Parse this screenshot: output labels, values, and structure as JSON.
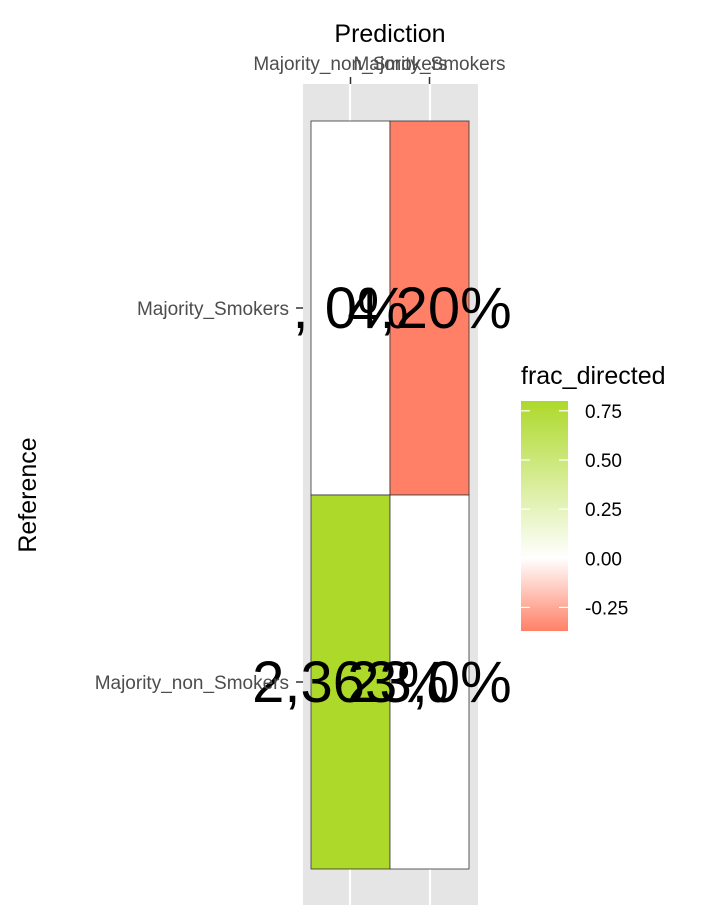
{
  "chart_data": {
    "type": "heatmap",
    "title": "",
    "xlabel": "Prediction",
    "ylabel": "Reference",
    "x_categories": [
      "Majority_non_Smokers",
      "Majority_Smokers"
    ],
    "y_categories": [
      "Majority_Smokers",
      "Majority_non_Smokers"
    ],
    "cells": [
      {
        "x": "Majority_non_Smokers",
        "y": "Majority_Smokers",
        "label": ", 0%",
        "fill": 0.0
      },
      {
        "x": "Majority_Smokers",
        "y": "Majority_Smokers",
        "label": "4,20%",
        "fill": -0.37
      },
      {
        "x": "Majority_non_Smokers",
        "y": "Majority_non_Smokers",
        "label": "2,363%",
        "fill": 0.8
      },
      {
        "x": "Majority_Smokers",
        "y": "Majority_non_Smokers",
        "label": "23,0%",
        "fill": 0.0
      }
    ],
    "legend": {
      "title": "frac_directed",
      "position": "right",
      "ticks": [
        0.75,
        0.5,
        0.25,
        0.0,
        -0.25
      ],
      "tick_labels": [
        "0.75",
        "0.50",
        "0.25",
        "0.00",
        "-0.25"
      ],
      "range": [
        -0.37,
        0.8
      ],
      "colors": {
        "high": "#add92a",
        "mid": "#ffffff",
        "low": "#ff8066"
      }
    },
    "grid": true
  }
}
